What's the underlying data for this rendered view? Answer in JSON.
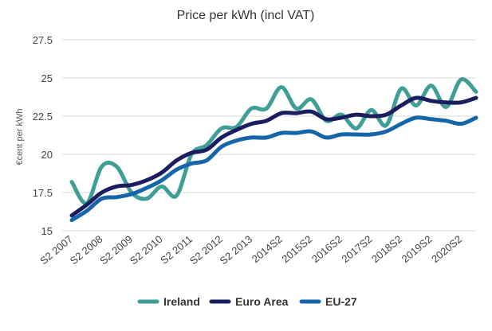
{
  "chart_data": {
    "type": "line",
    "title": "Price per kWh (incl VAT)",
    "xlabel": "",
    "ylabel": "€cent per kWh",
    "ylim": [
      15,
      27.5
    ],
    "yticks": [
      15,
      17.5,
      20,
      22.5,
      25,
      27.5
    ],
    "ytick_labels": [
      "15",
      "17.5",
      "20",
      "22.5",
      "25",
      "27.5"
    ],
    "grid": "horizontal",
    "legend_position": "bottom",
    "x": [
      "S2 2007",
      "S1 2008",
      "S2 2008",
      "S1 2009",
      "S2 2009",
      "S1 2010",
      "S2 2010",
      "S1 2011",
      "S2 2011",
      "S1 2012",
      "S2 2012",
      "S1 2013",
      "S2 2013",
      "2014S1",
      "2014S2",
      "2015S1",
      "2015S2",
      "2016S1",
      "2016S2",
      "2017S1",
      "2017S2",
      "2018S1",
      "2018S2",
      "2019S1",
      "2019S2",
      "2020S1",
      "2020S2",
      "2021S1"
    ],
    "xtick_labels": [
      "S2 2007",
      "S2 2008",
      "S2 2009",
      "S2 2010",
      "S2 2011",
      "S2 2012",
      "S2 2013",
      "2014S2",
      "2015S2",
      "2016S2",
      "2017S2",
      "2018S2",
      "2019S2",
      "2020S2"
    ],
    "series": [
      {
        "name": "Ireland",
        "color": "#3f9e96",
        "values": [
          18.2,
          16.8,
          19.2,
          19.2,
          17.5,
          17.1,
          17.9,
          17.3,
          20.0,
          20.6,
          21.7,
          21.8,
          23.0,
          23.0,
          24.4,
          23.0,
          23.6,
          22.2,
          22.6,
          21.7,
          22.9,
          21.9,
          24.3,
          23.2,
          24.5,
          23.1,
          24.9,
          24.1
        ]
      },
      {
        "name": "Euro Area",
        "color": "#1a1d5e",
        "values": [
          16.0,
          16.7,
          17.5,
          17.9,
          18.0,
          18.3,
          18.8,
          19.6,
          20.1,
          20.3,
          21.1,
          21.6,
          22.0,
          22.2,
          22.7,
          22.7,
          22.8,
          22.3,
          22.4,
          22.6,
          22.5,
          22.6,
          23.2,
          23.7,
          23.5,
          23.4,
          23.4,
          23.7
        ]
      },
      {
        "name": "EU-27",
        "color": "#1565a8",
        "values": [
          15.7,
          16.3,
          17.1,
          17.2,
          17.4,
          17.8,
          18.3,
          19.0,
          19.4,
          19.6,
          20.5,
          20.9,
          21.1,
          21.1,
          21.4,
          21.4,
          21.5,
          21.1,
          21.3,
          21.3,
          21.3,
          21.5,
          22.0,
          22.4,
          22.3,
          22.2,
          22.0,
          22.4
        ]
      }
    ]
  }
}
